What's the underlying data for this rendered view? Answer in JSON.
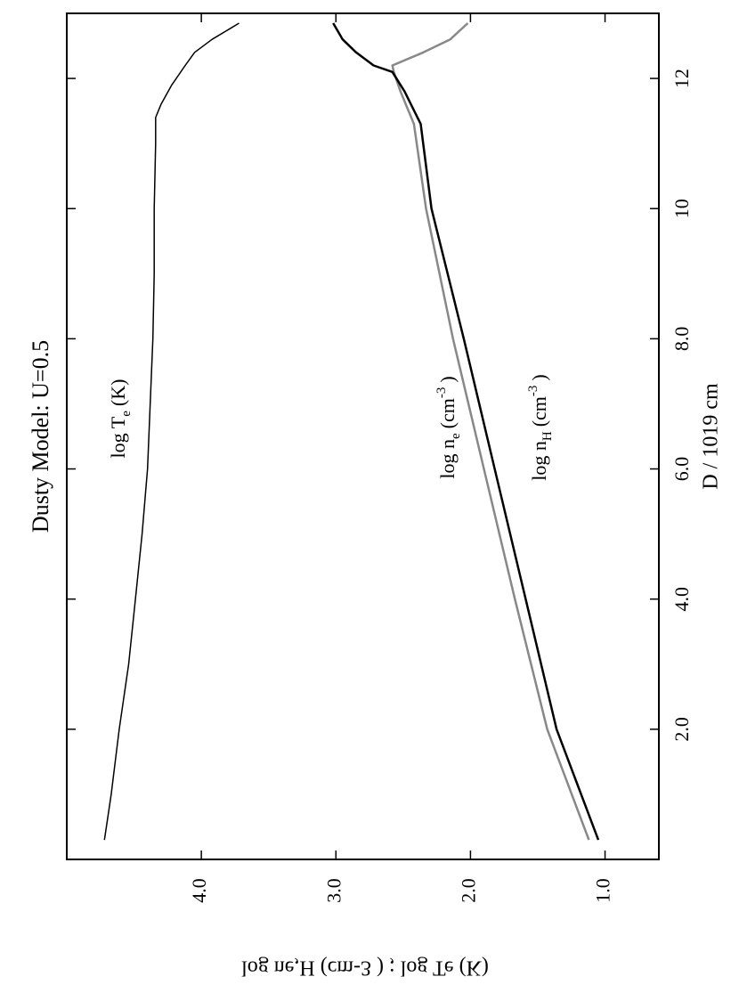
{
  "chart_data": {
    "type": "line",
    "title": "Dusty Model: U=0.5",
    "x_label": "D / 1019  cm",
    "y_label": "log ne,H  (cm-3 )  ;  log Te  (K)",
    "xlim": [
      0,
      13
    ],
    "xticks": [
      {
        "value": 2,
        "label": "2.0"
      },
      {
        "value": 4,
        "label": "4.0"
      },
      {
        "value": 6,
        "label": "6.0"
      },
      {
        "value": 8,
        "label": "8.0"
      },
      10,
      12
    ],
    "ylim": [
      0.6,
      5.0
    ],
    "yticks": [
      {
        "value": 1,
        "label": "1.0"
      },
      {
        "value": 2,
        "label": "2.0"
      },
      {
        "value": 3,
        "label": "3.0"
      },
      {
        "value": 4,
        "label": "4.0"
      }
    ],
    "annotations": [
      [
        "log T",
        "e",
        "(K)"
      ],
      [
        "log n",
        "e",
        "(cm",
        "-3",
        ")"
      ],
      [
        "log n",
        "H",
        "(cm",
        "-3",
        ")"
      ]
    ],
    "series": [
      {
        "name": "log Te",
        "color": "#000000",
        "x": [
          0.3,
          1,
          2,
          3,
          4,
          5,
          6,
          7,
          8,
          9,
          10,
          11,
          11.4,
          11.6,
          11.9,
          12.2,
          12.4,
          12.6,
          12.75,
          12.85
        ],
        "values": [
          4.72,
          4.67,
          4.61,
          4.54,
          4.49,
          4.44,
          4.4,
          4.38,
          4.36,
          4.35,
          4.35,
          4.34,
          4.34,
          4.3,
          4.22,
          4.12,
          4.05,
          3.92,
          3.8,
          3.72
        ]
      },
      {
        "name": "log ne",
        "color": "#888888",
        "x": [
          0.3,
          2,
          4,
          6,
          8,
          10,
          11.3,
          11.8,
          12.1,
          12.2,
          12.4,
          12.6,
          12.85
        ],
        "values": [
          1.12,
          1.43,
          1.67,
          1.9,
          2.13,
          2.33,
          2.42,
          2.52,
          2.57,
          2.58,
          2.35,
          2.15,
          2.02
        ]
      },
      {
        "name": "log nH",
        "color": "#000000",
        "x": [
          0.3,
          2,
          4,
          6,
          8,
          10,
          11.3,
          11.8,
          12.1,
          12.2,
          12.4,
          12.6,
          12.85
        ],
        "values": [
          1.05,
          1.36,
          1.59,
          1.82,
          2.05,
          2.29,
          2.37,
          2.49,
          2.58,
          2.72,
          2.85,
          2.95,
          3.02
        ]
      }
    ]
  }
}
